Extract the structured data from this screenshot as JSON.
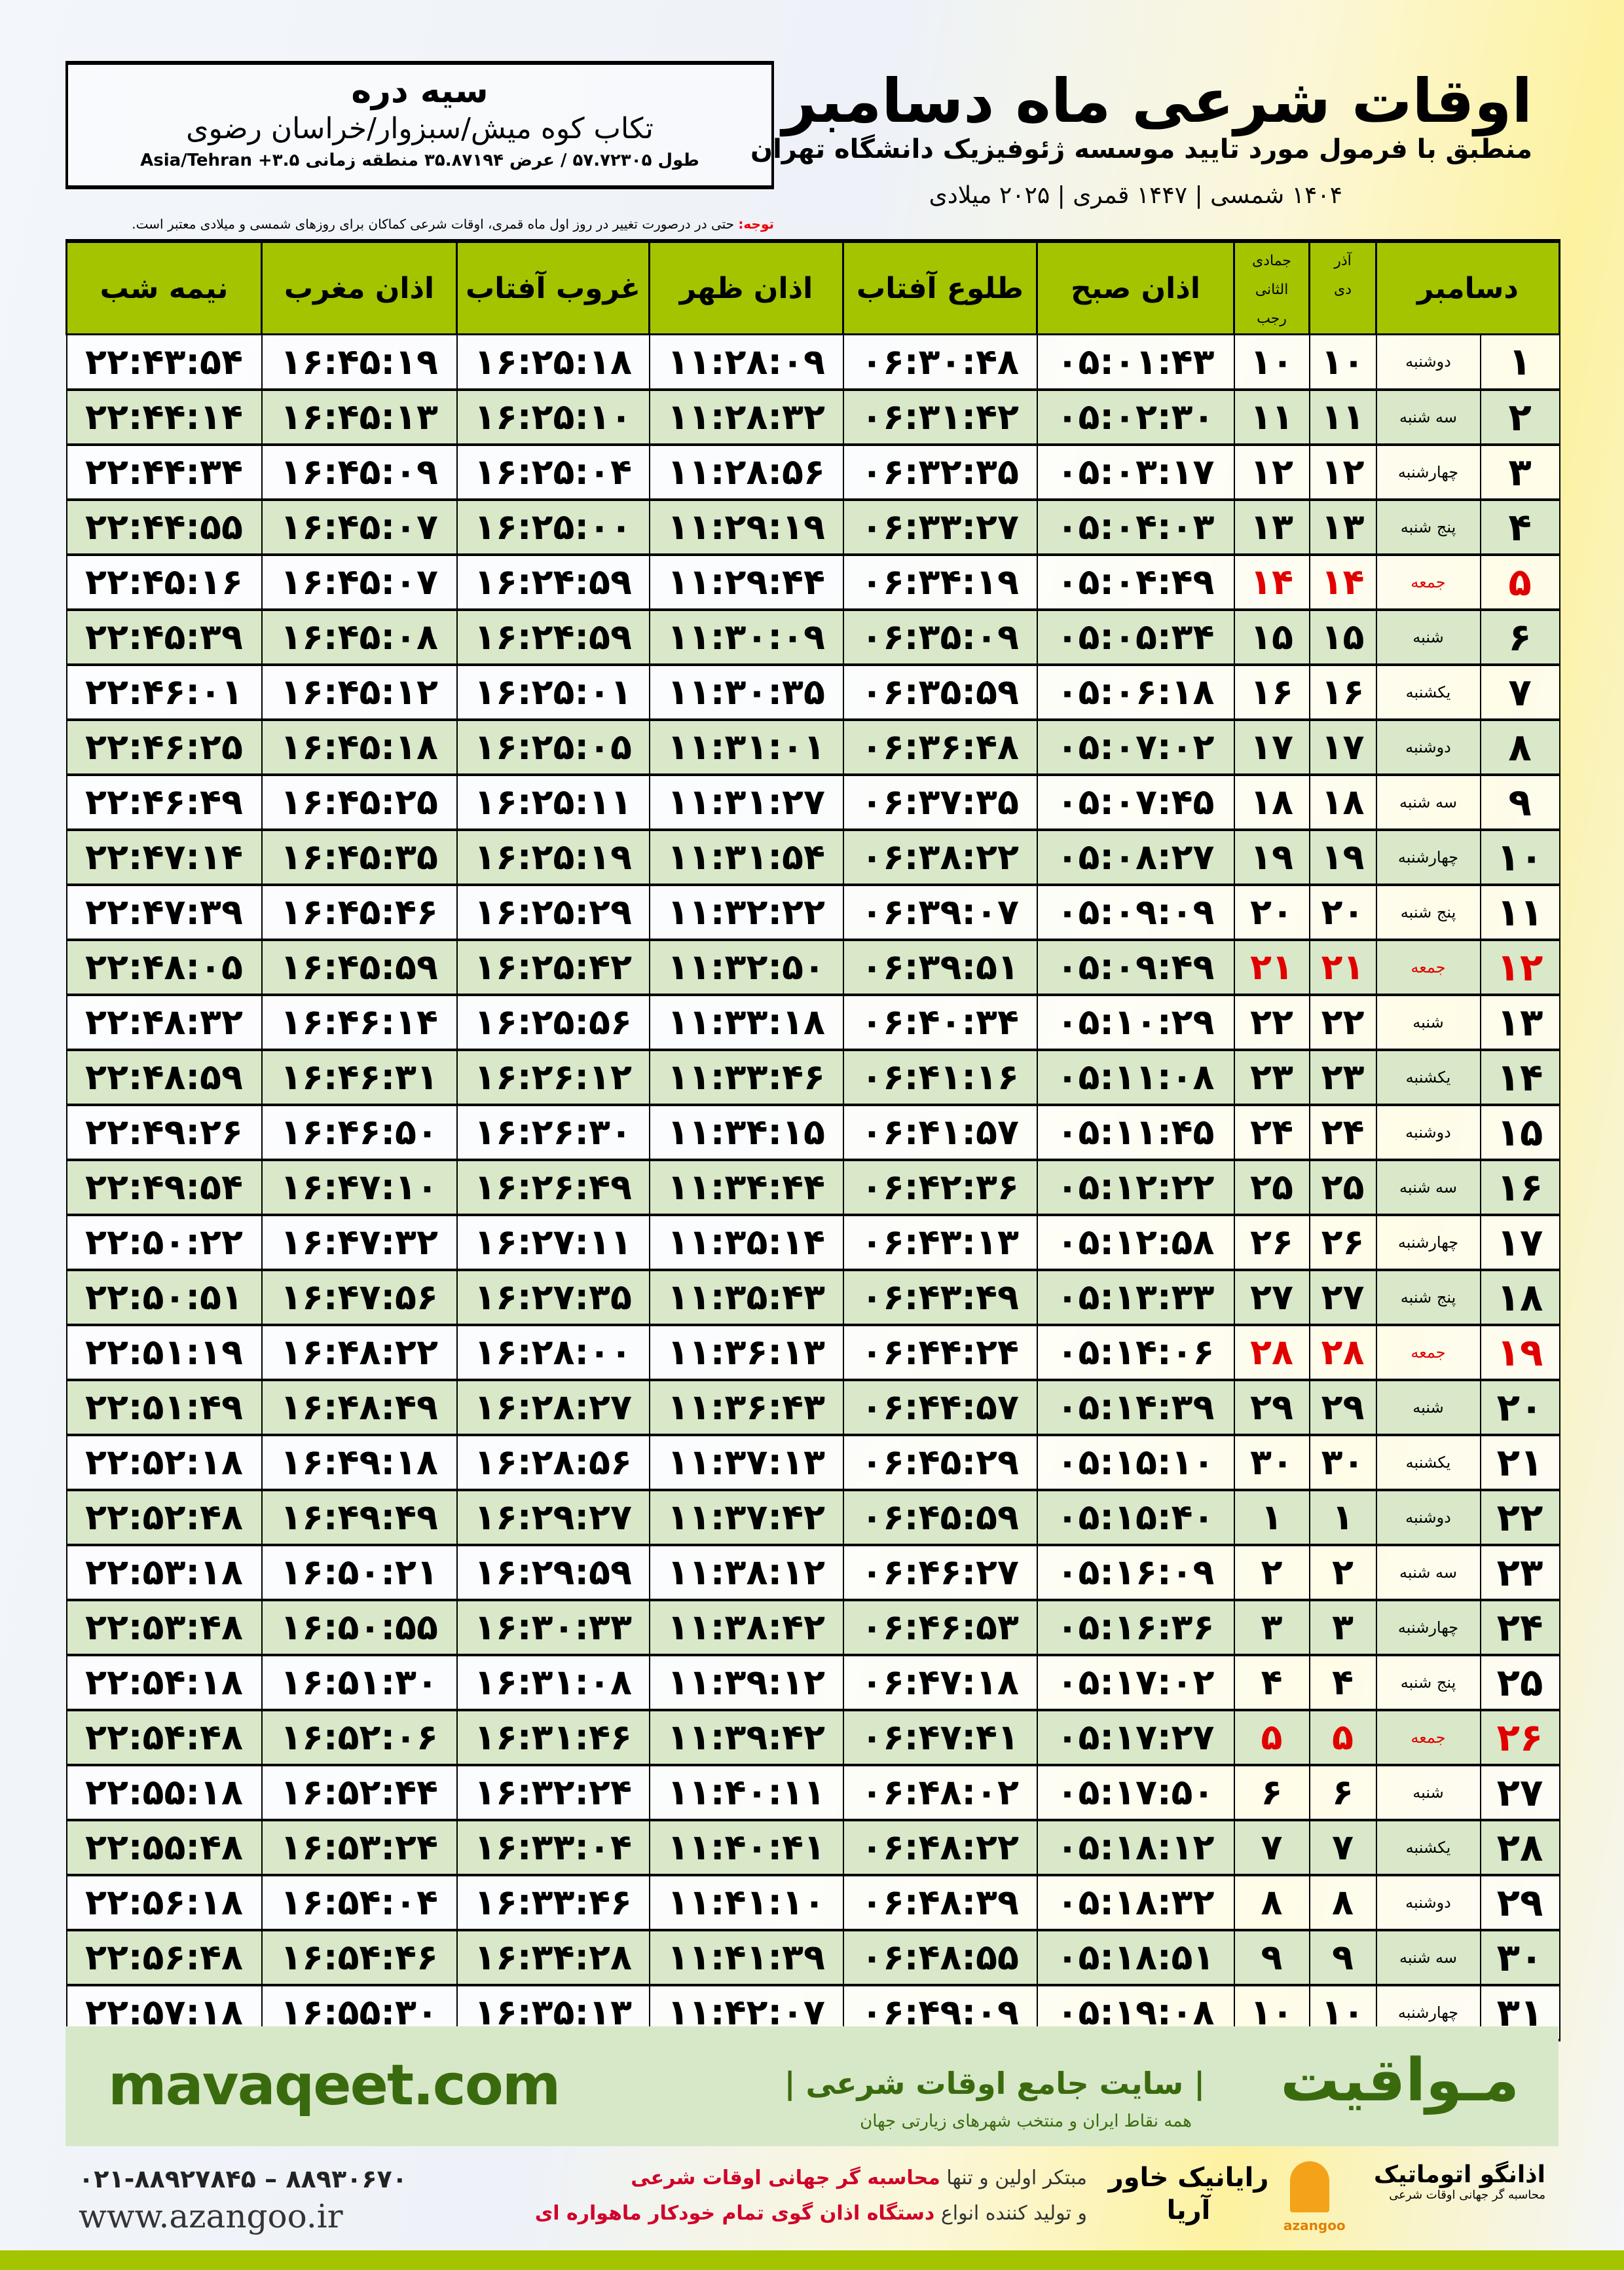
{
  "location": {
    "name": "سیه دره",
    "region": "تکاب کوه میش/سبزوار/خراسان رضوی",
    "coords": "طول ۵۷.۷۲۳۰۵ / عرض ۳۵.۸۷۱۹۴ منطقه زمانی ۳.۵+ Asia/Tehran"
  },
  "header": {
    "title": "اوقات شرعی ماه دسامبر",
    "subtitle": "منطبق با فرمول مورد تایید موسسه ژئوفیزیک دانشگاه تهران",
    "years": "۱۴۰۴ شمسی | ۱۴۴۷ قمری | ۲۰۲۵ میلادی"
  },
  "note": {
    "label": "توجه:",
    "text": " حتی در درصورت تغییر در روز اول ماه قمری، اوقات شرعی کماکان برای روزهای شمسی و میلادی معتبر است."
  },
  "table": {
    "headers": {
      "day": "دسامبر",
      "shamsi_top": "آذر",
      "shamsi_bottom": "دی",
      "qamari_top": "جمادی الثانی",
      "qamari_bottom": "رجب",
      "fajr": "اذان صبح",
      "sunrise": "طلوع آفتاب",
      "dhuhr": "اذان ظهر",
      "sunset": "غروب آفتاب",
      "maghrib": "اذان مغرب",
      "midnight": "نیمه شب"
    },
    "rows": [
      {
        "day": "۱",
        "weekday": "دوشنبه",
        "shamsi": "۱۰",
        "qamari": "۱۰",
        "fajr": "۰۵:۰۱:۴۳",
        "sunrise": "۰۶:۳۰:۴۸",
        "dhuhr": "۱۱:۲۸:۰۹",
        "sunset": "۱۶:۲۵:۱۸",
        "maghrib": "۱۶:۴۵:۱۹",
        "midnight": "۲۲:۴۳:۵۴",
        "holiday": false
      },
      {
        "day": "۲",
        "weekday": "سه شنبه",
        "shamsi": "۱۱",
        "qamari": "۱۱",
        "fajr": "۰۵:۰۲:۳۰",
        "sunrise": "۰۶:۳۱:۴۲",
        "dhuhr": "۱۱:۲۸:۳۲",
        "sunset": "۱۶:۲۵:۱۰",
        "maghrib": "۱۶:۴۵:۱۳",
        "midnight": "۲۲:۴۴:۱۴",
        "holiday": false
      },
      {
        "day": "۳",
        "weekday": "چهارشنبه",
        "shamsi": "۱۲",
        "qamari": "۱۲",
        "fajr": "۰۵:۰۳:۱۷",
        "sunrise": "۰۶:۳۲:۳۵",
        "dhuhr": "۱۱:۲۸:۵۶",
        "sunset": "۱۶:۲۵:۰۴",
        "maghrib": "۱۶:۴۵:۰۹",
        "midnight": "۲۲:۴۴:۳۴",
        "holiday": false
      },
      {
        "day": "۴",
        "weekday": "پنج شنبه",
        "shamsi": "۱۳",
        "qamari": "۱۳",
        "fajr": "۰۵:۰۴:۰۳",
        "sunrise": "۰۶:۳۳:۲۷",
        "dhuhr": "۱۱:۲۹:۱۹",
        "sunset": "۱۶:۲۵:۰۰",
        "maghrib": "۱۶:۴۵:۰۷",
        "midnight": "۲۲:۴۴:۵۵",
        "holiday": false
      },
      {
        "day": "۵",
        "weekday": "جمعه",
        "shamsi": "۱۴",
        "qamari": "۱۴",
        "fajr": "۰۵:۰۴:۴۹",
        "sunrise": "۰۶:۳۴:۱۹",
        "dhuhr": "۱۱:۲۹:۴۴",
        "sunset": "۱۶:۲۴:۵۹",
        "maghrib": "۱۶:۴۵:۰۷",
        "midnight": "۲۲:۴۵:۱۶",
        "holiday": true
      },
      {
        "day": "۶",
        "weekday": "شنبه",
        "shamsi": "۱۵",
        "qamari": "۱۵",
        "fajr": "۰۵:۰۵:۳۴",
        "sunrise": "۰۶:۳۵:۰۹",
        "dhuhr": "۱۱:۳۰:۰۹",
        "sunset": "۱۶:۲۴:۵۹",
        "maghrib": "۱۶:۴۵:۰۸",
        "midnight": "۲۲:۴۵:۳۹",
        "holiday": false
      },
      {
        "day": "۷",
        "weekday": "یکشنبه",
        "shamsi": "۱۶",
        "qamari": "۱۶",
        "fajr": "۰۵:۰۶:۱۸",
        "sunrise": "۰۶:۳۵:۵۹",
        "dhuhr": "۱۱:۳۰:۳۵",
        "sunset": "۱۶:۲۵:۰۱",
        "maghrib": "۱۶:۴۵:۱۲",
        "midnight": "۲۲:۴۶:۰۱",
        "holiday": false
      },
      {
        "day": "۸",
        "weekday": "دوشنبه",
        "shamsi": "۱۷",
        "qamari": "۱۷",
        "fajr": "۰۵:۰۷:۰۲",
        "sunrise": "۰۶:۳۶:۴۸",
        "dhuhr": "۱۱:۳۱:۰۱",
        "sunset": "۱۶:۲۵:۰۵",
        "maghrib": "۱۶:۴۵:۱۸",
        "midnight": "۲۲:۴۶:۲۵",
        "holiday": false
      },
      {
        "day": "۹",
        "weekday": "سه شنبه",
        "shamsi": "۱۸",
        "qamari": "۱۸",
        "fajr": "۰۵:۰۷:۴۵",
        "sunrise": "۰۶:۳۷:۳۵",
        "dhuhr": "۱۱:۳۱:۲۷",
        "sunset": "۱۶:۲۵:۱۱",
        "maghrib": "۱۶:۴۵:۲۵",
        "midnight": "۲۲:۴۶:۴۹",
        "holiday": false
      },
      {
        "day": "۱۰",
        "weekday": "چهارشنبه",
        "shamsi": "۱۹",
        "qamari": "۱۹",
        "fajr": "۰۵:۰۸:۲۷",
        "sunrise": "۰۶:۳۸:۲۲",
        "dhuhr": "۱۱:۳۱:۵۴",
        "sunset": "۱۶:۲۵:۱۹",
        "maghrib": "۱۶:۴۵:۳۵",
        "midnight": "۲۲:۴۷:۱۴",
        "holiday": false
      },
      {
        "day": "۱۱",
        "weekday": "پنج شنبه",
        "shamsi": "۲۰",
        "qamari": "۲۰",
        "fajr": "۰۵:۰۹:۰۹",
        "sunrise": "۰۶:۳۹:۰۷",
        "dhuhr": "۱۱:۳۲:۲۲",
        "sunset": "۱۶:۲۵:۲۹",
        "maghrib": "۱۶:۴۵:۴۶",
        "midnight": "۲۲:۴۷:۳۹",
        "holiday": false
      },
      {
        "day": "۱۲",
        "weekday": "جمعه",
        "shamsi": "۲۱",
        "qamari": "۲۱",
        "fajr": "۰۵:۰۹:۴۹",
        "sunrise": "۰۶:۳۹:۵۱",
        "dhuhr": "۱۱:۳۲:۵۰",
        "sunset": "۱۶:۲۵:۴۲",
        "maghrib": "۱۶:۴۵:۵۹",
        "midnight": "۲۲:۴۸:۰۵",
        "holiday": true
      },
      {
        "day": "۱۳",
        "weekday": "شنبه",
        "shamsi": "۲۲",
        "qamari": "۲۲",
        "fajr": "۰۵:۱۰:۲۹",
        "sunrise": "۰۶:۴۰:۳۴",
        "dhuhr": "۱۱:۳۳:۱۸",
        "sunset": "۱۶:۲۵:۵۶",
        "maghrib": "۱۶:۴۶:۱۴",
        "midnight": "۲۲:۴۸:۳۲",
        "holiday": false
      },
      {
        "day": "۱۴",
        "weekday": "یکشنبه",
        "shamsi": "۲۳",
        "qamari": "۲۳",
        "fajr": "۰۵:۱۱:۰۸",
        "sunrise": "۰۶:۴۱:۱۶",
        "dhuhr": "۱۱:۳۳:۴۶",
        "sunset": "۱۶:۲۶:۱۲",
        "maghrib": "۱۶:۴۶:۳۱",
        "midnight": "۲۲:۴۸:۵۹",
        "holiday": false
      },
      {
        "day": "۱۵",
        "weekday": "دوشنبه",
        "shamsi": "۲۴",
        "qamari": "۲۴",
        "fajr": "۰۵:۱۱:۴۵",
        "sunrise": "۰۶:۴۱:۵۷",
        "dhuhr": "۱۱:۳۴:۱۵",
        "sunset": "۱۶:۲۶:۳۰",
        "maghrib": "۱۶:۴۶:۵۰",
        "midnight": "۲۲:۴۹:۲۶",
        "holiday": false
      },
      {
        "day": "۱۶",
        "weekday": "سه شنبه",
        "shamsi": "۲۵",
        "qamari": "۲۵",
        "fajr": "۰۵:۱۲:۲۲",
        "sunrise": "۰۶:۴۲:۳۶",
        "dhuhr": "۱۱:۳۴:۴۴",
        "sunset": "۱۶:۲۶:۴۹",
        "maghrib": "۱۶:۴۷:۱۰",
        "midnight": "۲۲:۴۹:۵۴",
        "holiday": false
      },
      {
        "day": "۱۷",
        "weekday": "چهارشنبه",
        "shamsi": "۲۶",
        "qamari": "۲۶",
        "fajr": "۰۵:۱۲:۵۸",
        "sunrise": "۰۶:۴۳:۱۳",
        "dhuhr": "۱۱:۳۵:۱۴",
        "sunset": "۱۶:۲۷:۱۱",
        "maghrib": "۱۶:۴۷:۳۲",
        "midnight": "۲۲:۵۰:۲۲",
        "holiday": false
      },
      {
        "day": "۱۸",
        "weekday": "پنج شنبه",
        "shamsi": "۲۷",
        "qamari": "۲۷",
        "fajr": "۰۵:۱۳:۳۳",
        "sunrise": "۰۶:۴۳:۴۹",
        "dhuhr": "۱۱:۳۵:۴۳",
        "sunset": "۱۶:۲۷:۳۵",
        "maghrib": "۱۶:۴۷:۵۶",
        "midnight": "۲۲:۵۰:۵۱",
        "holiday": false
      },
      {
        "day": "۱۹",
        "weekday": "جمعه",
        "shamsi": "۲۸",
        "qamari": "۲۸",
        "fajr": "۰۵:۱۴:۰۶",
        "sunrise": "۰۶:۴۴:۲۴",
        "dhuhr": "۱۱:۳۶:۱۳",
        "sunset": "۱۶:۲۸:۰۰",
        "maghrib": "۱۶:۴۸:۲۲",
        "midnight": "۲۲:۵۱:۱۹",
        "holiday": true
      },
      {
        "day": "۲۰",
        "weekday": "شنبه",
        "shamsi": "۲۹",
        "qamari": "۲۹",
        "fajr": "۰۵:۱۴:۳۹",
        "sunrise": "۰۶:۴۴:۵۷",
        "dhuhr": "۱۱:۳۶:۴۳",
        "sunset": "۱۶:۲۸:۲۷",
        "maghrib": "۱۶:۴۸:۴۹",
        "midnight": "۲۲:۵۱:۴۹",
        "holiday": false
      },
      {
        "day": "۲۱",
        "weekday": "یکشنبه",
        "shamsi": "۳۰",
        "qamari": "۳۰",
        "fajr": "۰۵:۱۵:۱۰",
        "sunrise": "۰۶:۴۵:۲۹",
        "dhuhr": "۱۱:۳۷:۱۳",
        "sunset": "۱۶:۲۸:۵۶",
        "maghrib": "۱۶:۴۹:۱۸",
        "midnight": "۲۲:۵۲:۱۸",
        "holiday": false
      },
      {
        "day": "۲۲",
        "weekday": "دوشنبه",
        "shamsi": "۱",
        "qamari": "۱",
        "fajr": "۰۵:۱۵:۴۰",
        "sunrise": "۰۶:۴۵:۵۹",
        "dhuhr": "۱۱:۳۷:۴۲",
        "sunset": "۱۶:۲۹:۲۷",
        "maghrib": "۱۶:۴۹:۴۹",
        "midnight": "۲۲:۵۲:۴۸",
        "holiday": false
      },
      {
        "day": "۲۳",
        "weekday": "سه شنبه",
        "shamsi": "۲",
        "qamari": "۲",
        "fajr": "۰۵:۱۶:۰۹",
        "sunrise": "۰۶:۴۶:۲۷",
        "dhuhr": "۱۱:۳۸:۱۲",
        "sunset": "۱۶:۲۹:۵۹",
        "maghrib": "۱۶:۵۰:۲۱",
        "midnight": "۲۲:۵۳:۱۸",
        "holiday": false
      },
      {
        "day": "۲۴",
        "weekday": "چهارشنبه",
        "shamsi": "۳",
        "qamari": "۳",
        "fajr": "۰۵:۱۶:۳۶",
        "sunrise": "۰۶:۴۶:۵۳",
        "dhuhr": "۱۱:۳۸:۴۲",
        "sunset": "۱۶:۳۰:۳۳",
        "maghrib": "۱۶:۵۰:۵۵",
        "midnight": "۲۲:۵۳:۴۸",
        "holiday": false
      },
      {
        "day": "۲۵",
        "weekday": "پنج شنبه",
        "shamsi": "۴",
        "qamari": "۴",
        "fajr": "۰۵:۱۷:۰۲",
        "sunrise": "۰۶:۴۷:۱۸",
        "dhuhr": "۱۱:۳۹:۱۲",
        "sunset": "۱۶:۳۱:۰۸",
        "maghrib": "۱۶:۵۱:۳۰",
        "midnight": "۲۲:۵۴:۱۸",
        "holiday": false
      },
      {
        "day": "۲۶",
        "weekday": "جمعه",
        "shamsi": "۵",
        "qamari": "۵",
        "fajr": "۰۵:۱۷:۲۷",
        "sunrise": "۰۶:۴۷:۴۱",
        "dhuhr": "۱۱:۳۹:۴۲",
        "sunset": "۱۶:۳۱:۴۶",
        "maghrib": "۱۶:۵۲:۰۶",
        "midnight": "۲۲:۵۴:۴۸",
        "holiday": true
      },
      {
        "day": "۲۷",
        "weekday": "شنبه",
        "shamsi": "۶",
        "qamari": "۶",
        "fajr": "۰۵:۱۷:۵۰",
        "sunrise": "۰۶:۴۸:۰۲",
        "dhuhr": "۱۱:۴۰:۱۱",
        "sunset": "۱۶:۳۲:۲۴",
        "maghrib": "۱۶:۵۲:۴۴",
        "midnight": "۲۲:۵۵:۱۸",
        "holiday": false
      },
      {
        "day": "۲۸",
        "weekday": "یکشنبه",
        "shamsi": "۷",
        "qamari": "۷",
        "fajr": "۰۵:۱۸:۱۲",
        "sunrise": "۰۶:۴۸:۲۲",
        "dhuhr": "۱۱:۴۰:۴۱",
        "sunset": "۱۶:۳۳:۰۴",
        "maghrib": "۱۶:۵۳:۲۴",
        "midnight": "۲۲:۵۵:۴۸",
        "holiday": false
      },
      {
        "day": "۲۹",
        "weekday": "دوشنبه",
        "shamsi": "۸",
        "qamari": "۸",
        "fajr": "۰۵:۱۸:۳۲",
        "sunrise": "۰۶:۴۸:۳۹",
        "dhuhr": "۱۱:۴۱:۱۰",
        "sunset": "۱۶:۳۳:۴۶",
        "maghrib": "۱۶:۵۴:۰۴",
        "midnight": "۲۲:۵۶:۱۸",
        "holiday": false
      },
      {
        "day": "۳۰",
        "weekday": "سه شنبه",
        "shamsi": "۹",
        "qamari": "۹",
        "fajr": "۰۵:۱۸:۵۱",
        "sunrise": "۰۶:۴۸:۵۵",
        "dhuhr": "۱۱:۴۱:۳۹",
        "sunset": "۱۶:۳۴:۲۸",
        "maghrib": "۱۶:۵۴:۴۶",
        "midnight": "۲۲:۵۶:۴۸",
        "holiday": false
      },
      {
        "day": "۳۱",
        "weekday": "چهارشنبه",
        "shamsi": "۱۰",
        "qamari": "۱۰",
        "fajr": "۰۵:۱۹:۰۸",
        "sunrise": "۰۶:۴۹:۰۹",
        "dhuhr": "۱۱:۴۲:۰۷",
        "sunset": "۱۶:۳۵:۱۳",
        "maghrib": "۱۶:۵۵:۳۰",
        "midnight": "۲۲:۵۷:۱۸",
        "holiday": false
      }
    ]
  },
  "banner": {
    "brand": "مـواقیت",
    "tagline": "| سایت جامع اوقات شرعی |",
    "tagline2": "همه نقاط ایران و منتخب شهرهای زیارتی جهان",
    "site": "mavaqeet.com"
  },
  "footer": {
    "phones": "۰۲۱-۸۸۹۲۷۸۴۵ – ۸۸۹۳۰۶۷۰",
    "website": "www.azangoo.ir",
    "promo1_a": "مبتکر اولین و تنها ",
    "promo1_b": "محاسبه گر جهانی اوقات شرعی",
    "promo2_a": "و تولید کننده انواع ",
    "promo2_b": "دستگاه اذان گوی تمام خودکار ماهواره ای",
    "raya": "رایانیک خاور آریا",
    "azangoo_name": "اذانگو اتوماتیک",
    "azangoo_sub": "محاسبه گر جهانی اوقات شرعی",
    "azangoo_en": "azangoo"
  },
  "colors": {
    "header_green": "#a4c400",
    "row_green": "#d9e8c8",
    "banner_bg": "#d7e8c8",
    "brand_green": "#3a6a0e",
    "holiday_red": "#e00000"
  }
}
